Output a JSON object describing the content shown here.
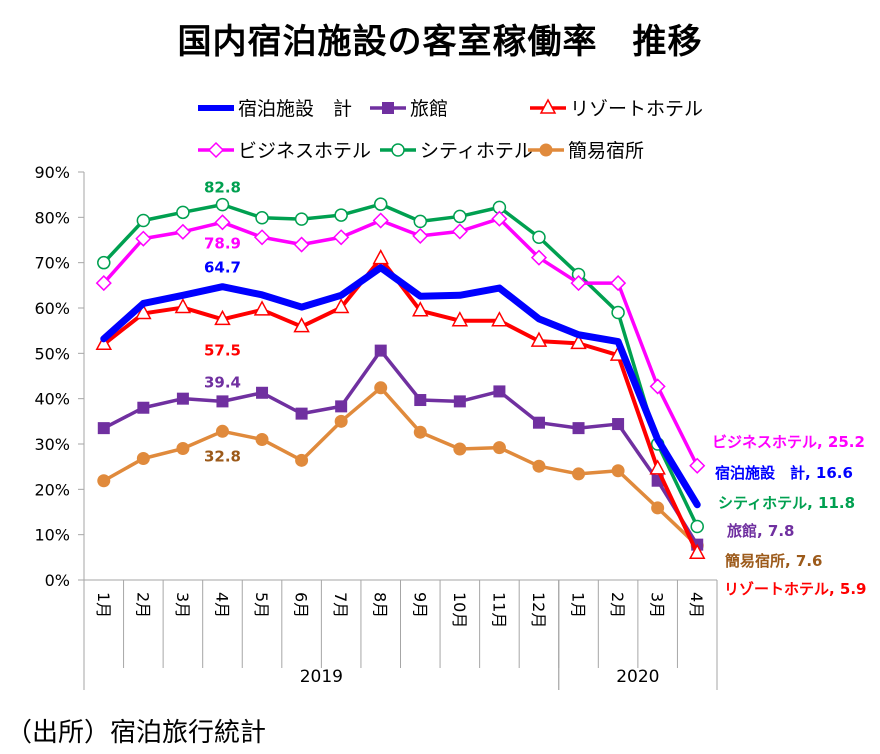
{
  "chart_data": {
    "type": "line",
    "title": "国内宿泊施設の客室稼働率　推移",
    "xlabel": "",
    "ylabel": "",
    "ylim": [
      0,
      90
    ],
    "yticks": [
      "0%",
      "10%",
      "20%",
      "30%",
      "40%",
      "50%",
      "60%",
      "70%",
      "80%",
      "90%"
    ],
    "ytick_values": [
      0,
      10,
      20,
      30,
      40,
      50,
      60,
      70,
      80,
      90
    ],
    "grid": false,
    "legend_position": "top",
    "categories": [
      "1月",
      "2月",
      "3月",
      "4月",
      "5月",
      "6月",
      "7月",
      "8月",
      "9月",
      "10月",
      "11月",
      "12月",
      "1月",
      "2月",
      "3月",
      "4月"
    ],
    "year_groups": [
      {
        "label": "2019",
        "count": 12
      },
      {
        "label": "2020",
        "count": 4
      }
    ],
    "series": [
      {
        "name": "宿泊施設　計",
        "key": "total",
        "color": "#0000FF",
        "marker": "none",
        "values": [
          53.2,
          61.0,
          62.8,
          64.7,
          62.9,
          60.2,
          62.8,
          68.9,
          62.6,
          62.8,
          64.4,
          57.6,
          54.1,
          52.6,
          31.0,
          16.6
        ]
      },
      {
        "name": "旅館",
        "key": "ryokan",
        "color": "#7030A0",
        "marker": "square",
        "values": [
          33.5,
          38.0,
          40.0,
          39.4,
          41.3,
          36.7,
          38.3,
          50.6,
          39.7,
          39.4,
          41.6,
          34.7,
          33.5,
          34.4,
          21.9,
          7.8
        ]
      },
      {
        "name": "リゾートホテル",
        "key": "resort",
        "color": "#FF0000",
        "marker": "triangle",
        "values": [
          52.0,
          58.8,
          60.1,
          57.5,
          59.6,
          55.9,
          60.1,
          70.9,
          59.4,
          57.2,
          57.2,
          52.7,
          52.2,
          49.6,
          24.5,
          5.9
        ]
      },
      {
        "name": "ビジネスホテル",
        "key": "business",
        "color": "#FF00FF",
        "marker": "diamond",
        "values": [
          65.5,
          75.3,
          76.8,
          78.9,
          75.6,
          74.0,
          75.6,
          79.3,
          75.9,
          76.9,
          79.7,
          71.1,
          65.5,
          65.5,
          42.7,
          25.2
        ]
      },
      {
        "name": "シティホテル",
        "key": "city",
        "color": "#00A050",
        "marker": "circle",
        "values": [
          70.0,
          79.3,
          81.1,
          82.8,
          79.9,
          79.6,
          80.5,
          82.9,
          79.1,
          80.2,
          82.2,
          75.6,
          67.4,
          59.0,
          30.0,
          11.8
        ]
      },
      {
        "name": "簡易宿所",
        "key": "kani",
        "color": "#E08A3C",
        "marker": "filled-circle",
        "values": [
          21.9,
          26.8,
          29.0,
          32.8,
          31.0,
          26.4,
          35.0,
          42.4,
          32.6,
          28.9,
          29.2,
          25.1,
          23.4,
          24.1,
          15.9,
          7.6
        ]
      }
    ],
    "annotations": [
      {
        "text": "82.8",
        "series": "city",
        "index": 3,
        "color": "#00A050"
      },
      {
        "text": "78.9",
        "series": "business",
        "index": 3,
        "color": "#FF00FF"
      },
      {
        "text": "64.7",
        "series": "total",
        "index": 3,
        "color": "#0000FF"
      },
      {
        "text": "57.5",
        "series": "resort",
        "index": 3,
        "color": "#FF0000"
      },
      {
        "text": "39.4",
        "series": "ryokan",
        "index": 3,
        "color": "#7030A0"
      },
      {
        "text": "32.8",
        "series": "kani",
        "index": 3,
        "color": "#9C5A1A"
      }
    ],
    "end_labels": [
      {
        "text": "ビジネスホテル, 25.2",
        "color": "#FF00FF"
      },
      {
        "text": "宿泊施設　計, 16.6",
        "color": "#0000FF"
      },
      {
        "text": "シティホテル, 11.8",
        "color": "#00A050"
      },
      {
        "text": "旅館, 7.8",
        "color": "#7030A0"
      },
      {
        "text": "簡易宿所, 7.6",
        "color": "#9C5A1A"
      },
      {
        "text": "リゾートホテル, 5.9",
        "color": "#FF0000"
      }
    ]
  },
  "source_note": "（出所）宿泊旅行統計"
}
